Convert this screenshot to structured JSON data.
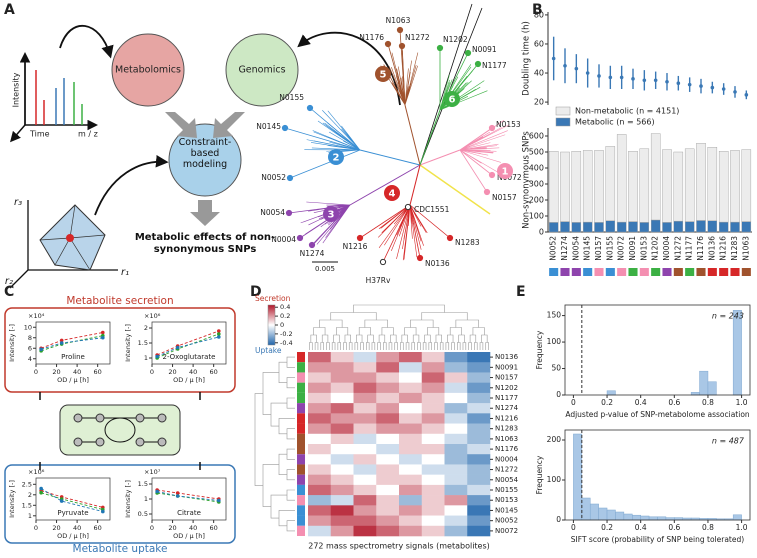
{
  "panels": [
    "A",
    "B",
    "C",
    "D",
    "E"
  ],
  "diagram": {
    "nodes": [
      "Metabolomics",
      "Genomics",
      "Constraint-based modeling",
      "Metabolic effects of non-synonymous SNPs"
    ],
    "ms_axes": [
      "Intensity",
      "Time",
      "m / z"
    ],
    "flux_axes": [
      "r₃",
      "r₁",
      "r₂"
    ]
  },
  "tree": {
    "leaves": [
      "N1063",
      "N1176",
      "N1272",
      "N1202",
      "N0091",
      "N1177",
      "N0155",
      "N0145",
      "N0052",
      "N0054",
      "N0004",
      "N1274",
      "N1216",
      "H37Rv",
      "N0136",
      "N1283",
      "CDC1551",
      "N0153",
      "N0072",
      "N0157"
    ],
    "clades": [
      "1",
      "2",
      "3",
      "4",
      "5",
      "6"
    ],
    "clade_colors": [
      "#f48fb1",
      "#3a8fd4",
      "#8e44ad",
      "#d62728",
      "#a0522d",
      "#3cb044"
    ],
    "scale": "0.005"
  },
  "panel_c": {
    "secretion": "Metabolite secretion",
    "uptake": "Metabolite uptake"
  },
  "chart_data": [
    {
      "type": "errorbar",
      "y_label": "Doubling time (h)",
      "color": "#3a78b5",
      "values": [
        50,
        45,
        43,
        40,
        38,
        37,
        37,
        36,
        35,
        35,
        34,
        33,
        32,
        31,
        30,
        29,
        27,
        25
      ],
      "errors": [
        15,
        12,
        10,
        10,
        8,
        8,
        8,
        7,
        7,
        6,
        6,
        5,
        5,
        5,
        4,
        4,
        4,
        3
      ],
      "ylim": [
        18,
        82
      ],
      "yticks": [
        20,
        40,
        60,
        80
      ]
    },
    {
      "type": "stacked_bar",
      "y_label": "Non-synonymous SNPs",
      "categories": [
        "N0052",
        "N1274",
        "N0054",
        "N0145",
        "N0157",
        "N0155",
        "N0072",
        "N0091",
        "N0153",
        "N1202",
        "N0004",
        "N1272",
        "N1177",
        "N1176",
        "N0136",
        "N1216",
        "N1283",
        "N1063"
      ],
      "category_colors": [
        "#3a8fd4",
        "#8e44ad",
        "#8e44ad",
        "#3a8fd4",
        "#f48fb1",
        "#3a8fd4",
        "#f48fb1",
        "#3cb044",
        "#f48fb1",
        "#3cb044",
        "#8e44ad",
        "#a0522d",
        "#3cb044",
        "#a0522d",
        "#d62728",
        "#d62728",
        "#d62728",
        "#a0522d"
      ],
      "series": [
        {
          "name": "Metabolic (n = 566)",
          "color": "#3a78b5",
          "values": [
            60,
            65,
            60,
            62,
            60,
            70,
            62,
            65,
            60,
            75,
            60,
            68,
            65,
            72,
            70,
            62,
            62,
            65
          ]
        },
        {
          "name": "Non-metabolic (n = 4151)",
          "color": "#ececec",
          "values": [
            445,
            435,
            445,
            448,
            450,
            465,
            548,
            440,
            460,
            540,
            455,
            432,
            455,
            483,
            460,
            443,
            448,
            450
          ]
        }
      ],
      "ylim": [
        0,
        650
      ],
      "yticks": [
        0,
        100,
        200,
        300,
        400,
        500,
        600
      ]
    },
    {
      "type": "scatter",
      "title": "Proline",
      "y_label": "Intensity [-]",
      "x_label": "OD / μ [h]",
      "exponent": "×10⁴",
      "x": [
        5,
        25,
        65
      ],
      "xlim": [
        0,
        72
      ],
      "xticks": [
        0,
        20,
        40,
        60
      ],
      "ylim": [
        3,
        11
      ],
      "yticks": [
        4,
        6,
        8,
        10
      ],
      "series": [
        {
          "color": "#d62728",
          "values": [
            6,
            7.5,
            9
          ]
        },
        {
          "color": "#2ca02c",
          "values": [
            5.5,
            6.8,
            8.4
          ]
        },
        {
          "color": "#1f77b4",
          "values": [
            5.8,
            7,
            8
          ]
        }
      ]
    },
    {
      "type": "scatter",
      "title": "2-Oxoglutarate",
      "y_label": "Intensity [-]",
      "x_label": "OD / μ [h]",
      "exponent": "×10⁶",
      "x": [
        5,
        25,
        65
      ],
      "xlim": [
        0,
        72
      ],
      "xticks": [
        0,
        20,
        40,
        60
      ],
      "ylim": [
        0.8,
        2.2
      ],
      "yticks": [
        1,
        1.5,
        2
      ],
      "series": [
        {
          "color": "#d62728",
          "values": [
            1.1,
            1.4,
            1.9
          ]
        },
        {
          "color": "#2ca02c",
          "values": [
            1,
            1.3,
            1.8
          ]
        },
        {
          "color": "#1f77b4",
          "values": [
            1.05,
            1.35,
            1.7
          ]
        }
      ]
    },
    {
      "type": "scatter",
      "title": "Pyruvate",
      "y_label": "Intensity [-]",
      "x_label": "OD / μ [h]",
      "exponent": "×10⁶",
      "x": [
        5,
        25,
        65
      ],
      "xlim": [
        0,
        72
      ],
      "xticks": [
        0,
        20,
        40,
        60
      ],
      "ylim": [
        0.8,
        2.8
      ],
      "yticks": [
        1,
        1.5,
        2,
        2.5
      ],
      "series": [
        {
          "color": "#d62728",
          "values": [
            2.2,
            1.9,
            1.4
          ]
        },
        {
          "color": "#2ca02c",
          "values": [
            2.1,
            1.8,
            1.3
          ]
        },
        {
          "color": "#1f77b4",
          "values": [
            2.3,
            1.7,
            1.2
          ]
        }
      ]
    },
    {
      "type": "scatter",
      "title": "Citrate",
      "y_label": "Intensity [-]",
      "x_label": "OD / μ [h]",
      "exponent": "×10⁷",
      "x": [
        5,
        25,
        65
      ],
      "xlim": [
        0,
        72
      ],
      "xticks": [
        0,
        20,
        40,
        60
      ],
      "ylim": [
        0.3,
        1.7
      ],
      "yticks": [
        0.5,
        1,
        1.5
      ],
      "series": [
        {
          "color": "#d62728",
          "values": [
            1.3,
            1.2,
            1
          ]
        },
        {
          "color": "#2ca02c",
          "values": [
            1.2,
            1.1,
            0.9
          ]
        },
        {
          "color": "#1f77b4",
          "values": [
            1.25,
            1.1,
            0.95
          ]
        }
      ]
    },
    {
      "type": "heatmap",
      "x_label": "272 mass spectrometry signals (metabolites)",
      "rows": [
        "N0136",
        "N0091",
        "N0157",
        "N1202",
        "N1177",
        "N1274",
        "N1216",
        "N1283",
        "N1063",
        "N1176",
        "N0004",
        "N1272",
        "N0054",
        "N0155",
        "N0153",
        "N0145",
        "N0052",
        "N0072"
      ],
      "row_colors": [
        "#d62728",
        "#3cb044",
        "#f48fb1",
        "#3cb044",
        "#3cb044",
        "#8e44ad",
        "#d62728",
        "#d62728",
        "#a0522d",
        "#a0522d",
        "#8e44ad",
        "#a0522d",
        "#8e44ad",
        "#3a8fd4",
        "#f48fb1",
        "#3a8fd4",
        "#3a8fd4",
        "#f48fb1"
      ],
      "values": [
        [
          0.3,
          0.1,
          -0.1,
          0.2,
          0.3,
          0.1,
          -0.3,
          -0.4
        ],
        [
          0.2,
          0.2,
          0.1,
          0.3,
          -0.1,
          0.2,
          -0.2,
          -0.3
        ],
        [
          0.1,
          0.2,
          0.2,
          0.1,
          0,
          0.3,
          0.1,
          -0.2
        ],
        [
          0.2,
          0.1,
          0.3,
          0.2,
          0.1,
          0.2,
          -0.1,
          -0.3
        ],
        [
          0.1,
          0,
          0.2,
          0.1,
          0.2,
          0.1,
          0,
          -0.2
        ],
        [
          0.2,
          0.3,
          0.1,
          0.2,
          0,
          0.1,
          -0.2,
          -0.1
        ],
        [
          0.3,
          0.2,
          0.2,
          0.3,
          0.1,
          0.2,
          -0.1,
          -0.3
        ],
        [
          0.2,
          0.3,
          0.1,
          0.2,
          0.2,
          0.1,
          0,
          -0.2
        ],
        [
          0,
          0.1,
          -0.1,
          0,
          0.1,
          0,
          -0.1,
          -0.2
        ],
        [
          0.1,
          0,
          0,
          -0.1,
          0.1,
          0.1,
          -0.2,
          -0.1
        ],
        [
          0,
          -0.1,
          0.1,
          0,
          -0.1,
          0,
          -0.2,
          -0.3
        ],
        [
          0.1,
          0,
          -0.1,
          0.1,
          0,
          -0.1,
          -0.1,
          -0.2
        ],
        [
          0.2,
          0.1,
          0,
          0.1,
          0.1,
          0,
          -0.1,
          -0.2
        ],
        [
          0.3,
          0.2,
          0.1,
          0,
          0.2,
          0.1,
          -0.2,
          -0.1
        ],
        [
          -0.2,
          -0.1,
          0.3,
          0.1,
          -0.2,
          0.1,
          0.2,
          -0.3
        ],
        [
          0.3,
          0.4,
          0.2,
          0.1,
          0.2,
          0.1,
          0,
          -0.4
        ],
        [
          0.2,
          0.3,
          0.3,
          0.2,
          0.1,
          0,
          -0.1,
          -0.3
        ],
        [
          -0.1,
          0.2,
          0.4,
          0.3,
          0.2,
          0.1,
          -0.2,
          -0.4
        ]
      ],
      "colorbar": {
        "top_label": "Secretion",
        "bottom_label": "Uptake",
        "lim": [
          -0.45,
          0.45
        ],
        "ticks": [
          0.4,
          0.2,
          0,
          -0.2,
          -0.4
        ]
      }
    },
    {
      "type": "histogram",
      "annotation": "n = 243",
      "x_label": "Adjusted p-value of SNP-metabolome association",
      "y_label": "Frequency",
      "color": "#a9c7e6",
      "bins": [
        0,
        0.05,
        0.1,
        0.15,
        0.2,
        0.25,
        0.3,
        0.35,
        0.4,
        0.45,
        0.5,
        0.55,
        0.6,
        0.65,
        0.7,
        0.75,
        0.8,
        0.85,
        0.9,
        0.95,
        1
      ],
      "counts": [
        0,
        0,
        0,
        0,
        8,
        0,
        0,
        0,
        0,
        0,
        0,
        0,
        0,
        0,
        5,
        45,
        25,
        0,
        0,
        160
      ],
      "threshold": 0.05,
      "xlim": [
        -0.05,
        1.05
      ],
      "xticks": [
        0,
        0.2,
        0.4,
        0.6,
        0.8,
        {
          "value": 1,
          "label": "1.0"
        }
      ],
      "ylim": [
        0,
        170
      ],
      "yticks": [
        0,
        50,
        100,
        150
      ]
    },
    {
      "type": "histogram",
      "annotation": "n = 487",
      "x_label": "SIFT score (probability of SNP being tolerated)",
      "y_label": "Frequency",
      "color": "#a9c7e6",
      "bins": [
        0,
        0.05,
        0.1,
        0.15,
        0.2,
        0.25,
        0.3,
        0.35,
        0.4,
        0.45,
        0.5,
        0.55,
        0.6,
        0.65,
        0.7,
        0.75,
        0.8,
        0.85,
        0.9,
        0.95,
        1
      ],
      "counts": [
        215,
        55,
        40,
        30,
        25,
        20,
        15,
        12,
        10,
        8,
        8,
        6,
        6,
        5,
        5,
        4,
        4,
        3,
        3,
        13
      ],
      "threshold": 0.05,
      "xlim": [
        -0.05,
        1.05
      ],
      "xticks": [
        0,
        0.2,
        0.4,
        0.6,
        0.8,
        {
          "value": 1,
          "label": "1.0"
        }
      ],
      "ylim": [
        0,
        225
      ],
      "yticks": [
        0,
        100,
        200
      ]
    }
  ]
}
